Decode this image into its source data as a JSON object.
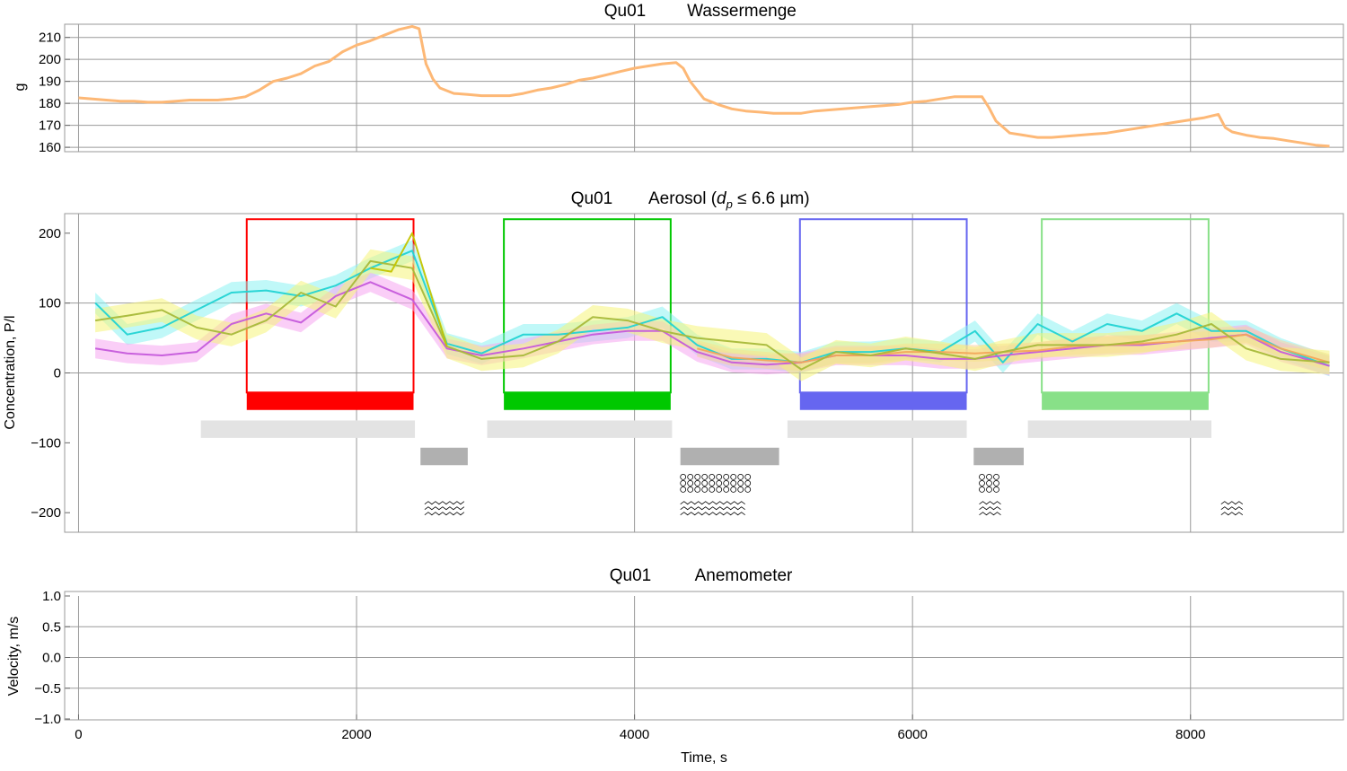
{
  "chart_data": [
    {
      "type": "line",
      "id": "water",
      "title_left": "Qu01",
      "title_right": "Wassermenge",
      "ylabel": "g",
      "xlim": [
        -100,
        9100
      ],
      "ylim": [
        158,
        216
      ],
      "xgrid": [
        0,
        2000,
        4000,
        6000,
        8000
      ],
      "ygrid": [
        160,
        170,
        180,
        190,
        200,
        210
      ],
      "yticks": [
        "160",
        "170",
        "180",
        "190",
        "200",
        "210"
      ],
      "color": "#FDB876",
      "series": [
        {
          "x": [
            0,
            100,
            200,
            300,
            400,
            500,
            600,
            700,
            800,
            900,
            1000,
            1100,
            1200,
            1300,
            1400,
            1500,
            1600,
            1700,
            1800,
            1900,
            2000,
            2100,
            2200,
            2300,
            2400,
            2450,
            2500,
            2550,
            2600,
            2700,
            2800,
            2900,
            3000,
            3100,
            3200,
            3300,
            3400,
            3500,
            3600,
            3700,
            3800,
            3900,
            4000,
            4100,
            4200,
            4300,
            4350,
            4400,
            4450,
            4500,
            4600,
            4700,
            4800,
            4900,
            5000,
            5100,
            5200,
            5300,
            5400,
            5500,
            5600,
            5700,
            5800,
            5900,
            6000,
            6100,
            6200,
            6300,
            6400,
            6500,
            6550,
            6600,
            6700,
            6800,
            6900,
            7000,
            7100,
            7200,
            7300,
            7400,
            7500,
            7600,
            7700,
            7800,
            7900,
            8000,
            8100,
            8200,
            8250,
            8300,
            8400,
            8500,
            8600,
            8700,
            8800,
            8900,
            9000
          ],
          "y": [
            182.5,
            182,
            181.5,
            181,
            181,
            180.5,
            180.5,
            181,
            181.5,
            181.5,
            181.5,
            182,
            183,
            186,
            190,
            191.5,
            193.5,
            197,
            199,
            203.5,
            206.5,
            208.5,
            211,
            213.5,
            215,
            214,
            198,
            191,
            187,
            184.5,
            184,
            183.5,
            183.5,
            183.5,
            184.5,
            186,
            187,
            188.5,
            190.5,
            191.5,
            193,
            194.5,
            196,
            197,
            198,
            198.5,
            196,
            190,
            186,
            182,
            179.5,
            177.5,
            176.5,
            176,
            175.5,
            175.5,
            175.5,
            176.5,
            177,
            177.5,
            178,
            178.5,
            179,
            179.5,
            180.5,
            181,
            182,
            183,
            183,
            183,
            178,
            172,
            166.5,
            165.5,
            164.5,
            164.5,
            165,
            165.5,
            166,
            166.5,
            167.5,
            168.5,
            169.5,
            170.5,
            171.5,
            172.5,
            173.5,
            175,
            169,
            167,
            165.5,
            164.5,
            164,
            163,
            162,
            161,
            160.5
          ]
        }
      ]
    },
    {
      "type": "line",
      "id": "aerosol",
      "title_left": "Qu01",
      "title_right_pre": "Aerosol  (",
      "title_sym": "d",
      "title_sub": "p",
      "title_right_post": " ≤ 6.6 µm)",
      "ylabel": "Concentration,  P/l",
      "xlim": [
        -100,
        9100
      ],
      "ylim": [
        -228,
        228
      ],
      "xgrid": [
        0,
        2000,
        4000,
        6000,
        8000
      ],
      "ygrid": [
        0,
        100
      ],
      "yticks": [
        "−200",
        "−100",
        "0",
        "100",
        "200"
      ],
      "yticks_values": [
        -200,
        -100,
        0,
        100,
        200
      ],
      "bands": [
        {
          "name": "",
          "color": "#22D3D3",
          "band_color": "#8CF2F2",
          "band_halfwidth": 15,
          "x": [
            120,
            350,
            600,
            850,
            1100,
            1350,
            1600,
            1850,
            2100,
            2400,
            2650,
            2900,
            3200,
            3450,
            3700,
            3950,
            4200,
            4450,
            4700,
            4950,
            5200,
            5450,
            5700,
            5950,
            6200,
            6450,
            6650,
            6900,
            7150,
            7400,
            7650,
            7900,
            8150,
            8400,
            8650,
            9000
          ],
          "y": [
            100,
            55,
            65,
            90,
            115,
            118,
            110,
            125,
            150,
            175,
            42,
            28,
            55,
            55,
            60,
            65,
            80,
            40,
            20,
            20,
            15,
            30,
            30,
            35,
            30,
            60,
            15,
            70,
            45,
            70,
            60,
            85,
            60,
            60,
            35,
            10
          ]
        },
        {
          "name": "",
          "color": "#C55ADB",
          "band_color": "#F5A6F0",
          "band_halfwidth": 14,
          "x": [
            120,
            350,
            600,
            850,
            1100,
            1350,
            1600,
            1850,
            2100,
            2400,
            2650,
            2900,
            3200,
            3450,
            3700,
            3950,
            4200,
            4450,
            4700,
            4950,
            5200,
            5450,
            5700,
            5950,
            6200,
            6450,
            6650,
            6900,
            7150,
            7400,
            7650,
            7900,
            8150,
            8400,
            8650,
            9000
          ],
          "y": [
            35,
            28,
            25,
            30,
            70,
            85,
            72,
            110,
            130,
            105,
            35,
            25,
            35,
            45,
            55,
            60,
            60,
            30,
            15,
            12,
            15,
            25,
            25,
            25,
            20,
            20,
            25,
            30,
            35,
            40,
            40,
            45,
            50,
            55,
            30,
            10
          ]
        },
        {
          "name": "",
          "color": "#F2A65A",
          "band_color": "#F8D0A0",
          "band_halfwidth": 12,
          "x": [
            4450,
            4700,
            4950,
            5200,
            5450,
            5700,
            5950,
            6200,
            6450,
            6650,
            6900,
            7150,
            7400,
            7650,
            7900,
            8150,
            8400,
            8650,
            9000
          ],
          "y": [
            35,
            22,
            18,
            15,
            25,
            25,
            30,
            30,
            28,
            30,
            32,
            38,
            40,
            42,
            45,
            48,
            55,
            35,
            15
          ]
        },
        {
          "name": "",
          "color": "#A8B93A",
          "band_color": "#F5F47A",
          "band_halfwidth": 17,
          "x": [
            120,
            350,
            600,
            850,
            1100,
            1350,
            1600,
            1850,
            2100,
            2400,
            2650,
            2900,
            3200,
            3450,
            3700,
            3950,
            4200,
            4450,
            4700,
            4950,
            5200,
            5450,
            5700,
            5950,
            6200,
            6450,
            6650,
            6900,
            7150,
            7400,
            7650,
            7900,
            8150,
            8400,
            8650,
            9000
          ],
          "y": [
            75,
            82,
            90,
            65,
            55,
            75,
            115,
            95,
            160,
            150,
            38,
            20,
            25,
            45,
            80,
            75,
            60,
            50,
            45,
            40,
            5,
            30,
            25,
            35,
            28,
            20,
            30,
            40,
            40,
            40,
            45,
            55,
            70,
            35,
            20,
            15
          ]
        },
        {
          "name": "",
          "color": "#C4C400",
          "band_color": null,
          "band_halfwidth": 0,
          "x": [
            2100,
            2250,
            2400,
            2650
          ],
          "y": [
            150,
            145,
            200,
            38
          ]
        }
      ],
      "boxes": [
        {
          "x0": 1210,
          "x1": 2410,
          "top": 220,
          "bottom": -28,
          "bar_top": -28,
          "bar_bottom": -53,
          "color": "#FF0000"
        },
        {
          "x0": 3060,
          "x1": 4260,
          "top": 220,
          "bottom": -28,
          "bar_top": -28,
          "bar_bottom": -53,
          "color": "#00C800"
        },
        {
          "x0": 5190,
          "x1": 6390,
          "top": 220,
          "bottom": -28,
          "bar_top": -28,
          "bar_bottom": -53,
          "color": "#6666F0"
        },
        {
          "x0": 6930,
          "x1": 8130,
          "top": 220,
          "bottom": -28,
          "bar_top": -28,
          "bar_bottom": -53,
          "color": "#88E088"
        }
      ],
      "light_bars": [
        {
          "x0": 880,
          "x1": 2420,
          "y0": -68,
          "y1": -93
        },
        {
          "x0": 2940,
          "x1": 4270,
          "y0": -68,
          "y1": -93
        },
        {
          "x0": 5100,
          "x1": 6390,
          "y0": -68,
          "y1": -93
        },
        {
          "x0": 6830,
          "x1": 8150,
          "y0": -68,
          "y1": -93
        }
      ],
      "dark_bars": [
        {
          "x0": 2460,
          "x1": 2800,
          "y0": -107,
          "y1": -132
        },
        {
          "x0": 4330,
          "x1": 5040,
          "y0": -107,
          "y1": -132
        },
        {
          "x0": 6440,
          "x1": 6800,
          "y0": -107,
          "y1": -132
        }
      ],
      "hex_patterns": [
        {
          "x0": 4330,
          "x1": 4820,
          "y0": -145,
          "y1": -172
        },
        {
          "x0": 6480,
          "x1": 6650,
          "y0": -145,
          "y1": -172
        }
      ],
      "zigzag_patterns": [
        {
          "x0": 2490,
          "x1": 2790,
          "y0": -184,
          "y1": -208
        },
        {
          "x0": 4330,
          "x1": 4820,
          "y0": -184,
          "y1": -208
        },
        {
          "x0": 6480,
          "x1": 6650,
          "y0": -184,
          "y1": -208
        },
        {
          "x0": 8220,
          "x1": 8380,
          "y0": -184,
          "y1": -208
        }
      ]
    },
    {
      "type": "line",
      "id": "anemometer",
      "title_left": "Qu01",
      "title_right": "Anemometer",
      "ylabel": "Velocity,  m/s",
      "xlabel": "Time,  s",
      "xlim": [
        -100,
        9100
      ],
      "ylim": [
        -1.0,
        1.0
      ],
      "xgrid": [
        0,
        2000,
        4000,
        6000,
        8000
      ],
      "xticks": [
        "0",
        "2000",
        "4000",
        "6000",
        "8000"
      ],
      "ygrid": [
        -0.5,
        0,
        0.5
      ],
      "yticks": [
        "−1.0",
        "−0.5",
        "0.0",
        "0.5",
        "1.0"
      ],
      "yticks_values": [
        -1.0,
        -0.5,
        0.0,
        0.5,
        1.0
      ],
      "series": []
    }
  ]
}
